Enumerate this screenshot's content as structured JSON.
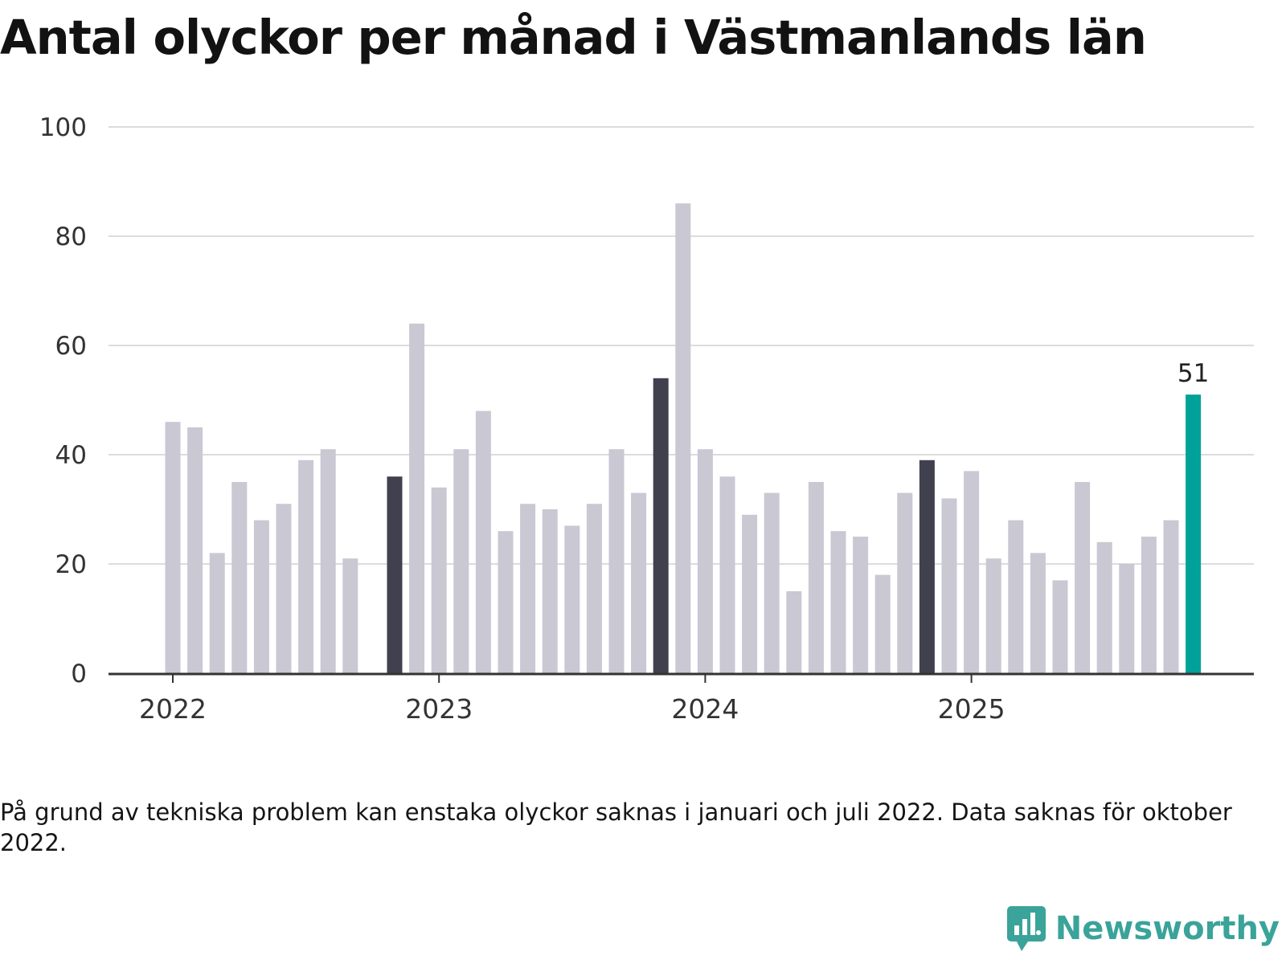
{
  "chart_data": {
    "type": "bar",
    "title": "Antal olyckor per månad i Västmanlands län",
    "xlabel": "",
    "ylabel": "",
    "ylim": [
      0,
      100
    ],
    "yticks": [
      0,
      20,
      40,
      60,
      80,
      100
    ],
    "year_ticks": [
      {
        "label": "2022",
        "index": 0
      },
      {
        "label": "2023",
        "index": 12
      },
      {
        "label": "2024",
        "index": 24
      },
      {
        "label": "2025",
        "index": 36
      }
    ],
    "categories": [
      "2022-01",
      "2022-02",
      "2022-03",
      "2022-04",
      "2022-05",
      "2022-06",
      "2022-07",
      "2022-08",
      "2022-09",
      "2022-10",
      "2022-11",
      "2022-12",
      "2023-01",
      "2023-02",
      "2023-03",
      "2023-04",
      "2023-05",
      "2023-06",
      "2023-07",
      "2023-08",
      "2023-09",
      "2023-10",
      "2023-11",
      "2023-12",
      "2024-01",
      "2024-02",
      "2024-03",
      "2024-04",
      "2024-05",
      "2024-06",
      "2024-07",
      "2024-08",
      "2024-09",
      "2024-10",
      "2024-11",
      "2024-12",
      "2025-01",
      "2025-02",
      "2025-03",
      "2025-04",
      "2025-05",
      "2025-06",
      "2025-07",
      "2025-08",
      "2025-09",
      "2025-10",
      "2025-11"
    ],
    "values": [
      46,
      45,
      22,
      35,
      28,
      31,
      39,
      41,
      21,
      null,
      36,
      64,
      34,
      41,
      48,
      26,
      31,
      30,
      27,
      31,
      41,
      33,
      54,
      86,
      41,
      36,
      29,
      33,
      15,
      35,
      26,
      25,
      18,
      33,
      39,
      32,
      37,
      21,
      28,
      22,
      17,
      35,
      24,
      20,
      25,
      28,
      51
    ],
    "highlight": {
      "november_indices": [
        10,
        22,
        34
      ],
      "latest_index": 46,
      "latest_label": "51"
    },
    "colors": {
      "default": "#c9c8d3",
      "november": "#40404f",
      "latest": "#00a199",
      "grid": "#dcdcdc",
      "axis": "#333333"
    }
  },
  "footnote": "På grund av tekniska problem kan enstaka olyckor saknas i januari och juli 2022. Data saknas för oktober 2022.",
  "brand": {
    "name": "Newsworthy",
    "icon": "newsworthy-logo-icon",
    "color": "#3aa39a"
  }
}
